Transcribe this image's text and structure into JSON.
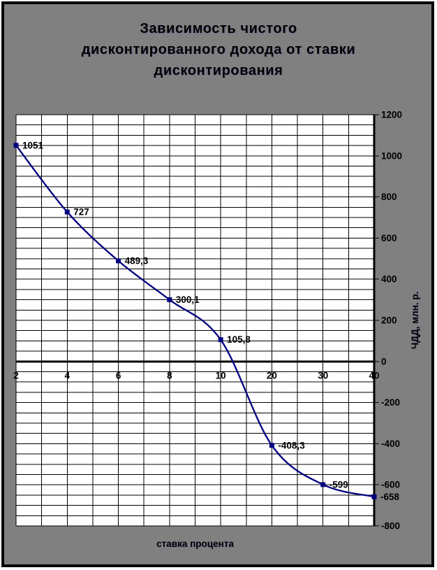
{
  "window": {
    "background": "#808080",
    "border_color": "#000000"
  },
  "chart_data": {
    "type": "line",
    "title": "Зависимость чистого дисконтированного дохода от ставки дисконтирования",
    "title_lines": [
      "Зависимость чистого",
      "дисконтированного дохода от ставки",
      "дисконтирования"
    ],
    "xlabel": "ставка процента",
    "ylabel": "ЧДД, млн. р.",
    "categories": [
      "2",
      "4",
      "6",
      "8",
      "10",
      "20",
      "30",
      "40"
    ],
    "series": [
      {
        "values": [
          1051,
          727,
          489.3,
          300.1,
          105.8,
          -408.3,
          -599,
          -658
        ],
        "point_labels": [
          "1051",
          "727",
          "489,3",
          "300,1",
          "105,8",
          "-408,3",
          "-599",
          "-658"
        ],
        "color": "#000080",
        "marker": "square",
        "smoothed": true
      }
    ],
    "ylim": [
      -800,
      1200
    ],
    "ytick_major": 200,
    "ytick_minor": 50,
    "yticklabels": [
      "1200",
      "1000",
      "800",
      "600",
      "400",
      "200",
      "0",
      "-200",
      "-400",
      "-600",
      "-800"
    ],
    "grid": true,
    "plot_bg": "#ffffff",
    "grid_color": "#000000",
    "axis_color": "#000000",
    "axis_cross_value": 0,
    "legend": "none"
  }
}
